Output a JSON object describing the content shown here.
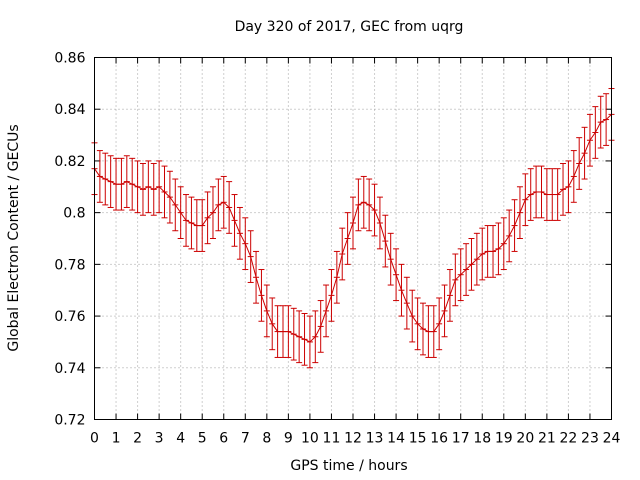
{
  "chart_data": {
    "type": "line",
    "title": "Day 320 of 2017, GEC from uqrg",
    "xlabel": "GPS time / hours",
    "ylabel": "Global Electron Content / GECUs",
    "xlim": [
      0,
      24
    ],
    "ylim": [
      0.72,
      0.86
    ],
    "x_ticks": [
      "0",
      "1",
      "2",
      "3",
      "4",
      "5",
      "6",
      "7",
      "8",
      "9",
      "10",
      "11",
      "12",
      "13",
      "14",
      "15",
      "16",
      "17",
      "18",
      "19",
      "20",
      "21",
      "22",
      "23",
      "24"
    ],
    "y_ticks": [
      "0.72",
      "0.74",
      "0.76",
      "0.78",
      "0.8",
      "0.82",
      "0.84",
      "0.86"
    ],
    "grid": true,
    "error_bar": 0.01,
    "series": [
      {
        "color": "#cc0000",
        "x": [
          0.0,
          0.25,
          0.5,
          0.75,
          1.0,
          1.25,
          1.5,
          1.75,
          2.0,
          2.25,
          2.5,
          2.75,
          3.0,
          3.25,
          3.5,
          3.75,
          4.0,
          4.25,
          4.5,
          4.75,
          5.0,
          5.25,
          5.5,
          5.75,
          6.0,
          6.25,
          6.5,
          6.75,
          7.0,
          7.25,
          7.5,
          7.75,
          8.0,
          8.25,
          8.5,
          8.75,
          9.0,
          9.25,
          9.5,
          9.75,
          10.0,
          10.25,
          10.5,
          10.75,
          11.0,
          11.25,
          11.5,
          11.75,
          12.0,
          12.25,
          12.5,
          12.75,
          13.0,
          13.25,
          13.5,
          13.75,
          14.0,
          14.25,
          14.5,
          14.75,
          15.0,
          15.25,
          15.5,
          15.75,
          16.0,
          16.25,
          16.5,
          16.75,
          17.0,
          17.25,
          17.5,
          17.75,
          18.0,
          18.25,
          18.5,
          18.75,
          19.0,
          19.25,
          19.5,
          19.75,
          20.0,
          20.25,
          20.5,
          20.75,
          21.0,
          21.25,
          21.5,
          21.75,
          22.0,
          22.25,
          22.5,
          22.75,
          23.0,
          23.25,
          23.5,
          23.75,
          24.0
        ],
        "y": [
          0.817,
          0.814,
          0.813,
          0.812,
          0.811,
          0.811,
          0.812,
          0.811,
          0.81,
          0.809,
          0.81,
          0.809,
          0.81,
          0.808,
          0.806,
          0.803,
          0.8,
          0.797,
          0.796,
          0.795,
          0.795,
          0.798,
          0.8,
          0.803,
          0.804,
          0.802,
          0.797,
          0.792,
          0.788,
          0.783,
          0.775,
          0.768,
          0.762,
          0.757,
          0.754,
          0.754,
          0.754,
          0.753,
          0.752,
          0.751,
          0.75,
          0.752,
          0.756,
          0.762,
          0.768,
          0.775,
          0.784,
          0.79,
          0.796,
          0.803,
          0.804,
          0.803,
          0.801,
          0.796,
          0.789,
          0.782,
          0.776,
          0.77,
          0.765,
          0.76,
          0.757,
          0.755,
          0.754,
          0.754,
          0.757,
          0.762,
          0.768,
          0.774,
          0.776,
          0.778,
          0.78,
          0.782,
          0.784,
          0.785,
          0.785,
          0.786,
          0.788,
          0.791,
          0.795,
          0.8,
          0.805,
          0.807,
          0.808,
          0.808,
          0.807,
          0.807,
          0.807,
          0.809,
          0.81,
          0.814,
          0.819,
          0.823,
          0.828,
          0.831,
          0.835,
          0.836,
          0.838
        ]
      }
    ]
  }
}
